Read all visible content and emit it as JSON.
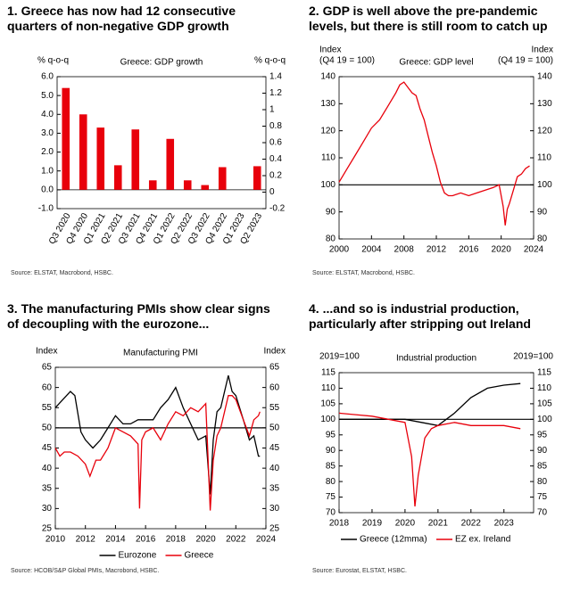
{
  "chart_data": [
    {
      "type": "bar",
      "title": "1. Greece has now had 12 consecutive quarters of non-negative GDP growth",
      "subtitle": "Greece: GDP growth",
      "ylabel": [
        "% q-o-q"
      ],
      "y2label": [
        "% q-o-q"
      ],
      "categories": [
        "Q3 2020",
        "Q4 2020",
        "Q1 2021",
        "Q2 2021",
        "Q3 2021",
        "Q4 2021",
        "Q1 2022",
        "Q2 2022",
        "Q3 2022",
        "Q4 2022",
        "Q1 2023",
        "Q2 2023"
      ],
      "values": [
        5.4,
        4.0,
        3.3,
        1.3,
        3.2,
        0.5,
        2.7,
        0.5,
        0.25,
        1.2,
        0,
        1.25
      ],
      "color": "#e8000b",
      "ylim": [
        -1,
        6
      ],
      "yticks": [
        {
          "value": -1,
          "label": "-1.0"
        },
        {
          "value": 0,
          "label": "0.0"
        },
        {
          "value": 1,
          "label": "1.0"
        },
        {
          "value": 2,
          "label": "2.0"
        },
        {
          "value": 3,
          "label": "3.0"
        },
        {
          "value": 4,
          "label": "4.0"
        },
        {
          "value": 5,
          "label": "5.0"
        },
        {
          "value": 6,
          "label": "6.0"
        }
      ],
      "y2lim": [
        -0.2,
        1.4
      ],
      "y2ticks": [
        -0.2,
        0,
        0.2,
        0.4,
        0.6,
        0.8,
        1,
        1.2,
        1.4
      ],
      "source": "Source: ELSTAT, Macrobond, HSBC."
    },
    {
      "type": "line",
      "title": "2. GDP is well above the pre-pandemic levels, but there is still room to catch up",
      "subtitle": "Greece: GDP level",
      "ylabel": [
        "Index",
        "(Q4 19 = 100)"
      ],
      "y2label": [
        "Index",
        "(Q4 19 = 100)"
      ],
      "x": [
        2000,
        2001,
        2002,
        2003,
        2004,
        2005,
        2006,
        2007,
        2007.5,
        2008,
        2008.5,
        2009,
        2009.5,
        2010,
        2010.5,
        2011,
        2011.5,
        2012,
        2012.5,
        2013,
        2013.5,
        2014,
        2015,
        2016,
        2017,
        2018,
        2019,
        2019.75,
        2020.25,
        2020.5,
        2020.75,
        2021,
        2021.5,
        2022,
        2022.5,
        2023,
        2023.5
      ],
      "values": [
        101,
        106,
        111,
        116,
        121,
        124,
        129,
        134,
        137,
        138,
        136,
        134,
        133,
        128,
        124,
        118,
        112,
        107,
        101,
        97,
        96,
        96,
        97,
        96,
        97,
        98,
        99,
        100,
        92,
        85,
        91,
        93,
        98,
        103,
        104,
        106,
        107
      ],
      "color": "#e8000b",
      "hline": 100,
      "xlim": [
        2000,
        2024
      ],
      "xticks": [
        2000,
        2004,
        2008,
        2012,
        2016,
        2020,
        2024
      ],
      "ylim": [
        80,
        140
      ],
      "yticks": [
        80,
        90,
        100,
        110,
        120,
        130,
        140
      ],
      "y2lim": [
        80,
        140
      ],
      "y2ticks": [
        80,
        90,
        100,
        110,
        120,
        130,
        140
      ],
      "source": "Source: ELSTAT, Macrobond, HSBC."
    },
    {
      "type": "line",
      "title": "3. The manufacturing PMIs show clear signs of decoupling with the eurozone...",
      "subtitle": "Manufacturing PMI",
      "ylabel": [
        "Index"
      ],
      "y2label": [
        "Index"
      ],
      "hline": 50,
      "series": [
        {
          "name": "Eurozone",
          "color": "#000000",
          "x": [
            2010,
            2010.5,
            2011,
            2011.3,
            2011.7,
            2012,
            2012.5,
            2013,
            2013.5,
            2014,
            2014.5,
            2015,
            2015.5,
            2016,
            2016.5,
            2017,
            2017.5,
            2018,
            2018.5,
            2019,
            2019.5,
            2020,
            2020.3,
            2020.5,
            2020.75,
            2021,
            2021.5,
            2021.75,
            2022,
            2022.5,
            2022.9,
            2023.2,
            2023.5,
            2023.6
          ],
          "values": [
            55,
            57,
            59,
            58,
            49,
            47,
            45,
            47,
            50,
            53,
            51,
            51,
            52,
            52,
            52,
            55,
            57,
            60,
            55,
            51,
            47,
            48,
            33.5,
            47,
            54,
            55,
            63,
            59,
            58,
            52,
            47,
            48,
            43,
            43
          ]
        },
        {
          "name": "Greece",
          "color": "#e8000b",
          "x": [
            2010,
            2010.3,
            2010.6,
            2011,
            2011.5,
            2012,
            2012.3,
            2012.7,
            2013,
            2013.5,
            2014,
            2014.5,
            2015,
            2015.5,
            2015.6,
            2015.75,
            2016,
            2016.5,
            2017,
            2017.5,
            2018,
            2018.5,
            2019,
            2019.5,
            2020,
            2020.3,
            2020.5,
            2020.75,
            2021,
            2021.5,
            2021.75,
            2022,
            2022.5,
            2022.9,
            2023.2,
            2023.5,
            2023.6
          ],
          "values": [
            45,
            43,
            44,
            44,
            43,
            41,
            38,
            42,
            42,
            45,
            50,
            49,
            48,
            46,
            30,
            47,
            49,
            50,
            47,
            51,
            54,
            53,
            55,
            54,
            56,
            29.5,
            42,
            48,
            50,
            58,
            58,
            57,
            52,
            48,
            52,
            53,
            54
          ]
        }
      ],
      "xlim": [
        2010,
        2024
      ],
      "xticks": [
        2010,
        2012,
        2014,
        2016,
        2018,
        2020,
        2022,
        2024
      ],
      "ylim": [
        25,
        65
      ],
      "yticks": [
        25,
        30,
        35,
        40,
        45,
        50,
        55,
        60,
        65
      ],
      "y2lim": [
        25,
        65
      ],
      "y2ticks": [
        25,
        30,
        35,
        40,
        45,
        50,
        55,
        60,
        65
      ],
      "source": "Source: HCOB/S&P Global PMIs, Macrobond, HSBC."
    },
    {
      "type": "line",
      "title": "4. ...and so is industrial production, particularly after stripping out Ireland",
      "subtitle": "Industrial production",
      "ylabel": [
        "2019=100"
      ],
      "y2label": [
        "2019=100"
      ],
      "hline": 100,
      "series": [
        {
          "name": "Greece (12mma)",
          "color": "#000000",
          "x": [
            2018,
            2018.5,
            2019,
            2019.5,
            2020,
            2020.5,
            2021,
            2021.5,
            2022,
            2022.5,
            2023,
            2023.5
          ],
          "values": [
            100,
            100,
            100,
            100,
            100,
            99,
            98,
            102,
            107,
            110,
            111,
            111.5
          ]
        },
        {
          "name": "EZ ex. Ireland",
          "color": "#e8000b",
          "x": [
            2018,
            2018.5,
            2019,
            2019.5,
            2020,
            2020.2,
            2020.3,
            2020.4,
            2020.6,
            2020.8,
            2021,
            2021.5,
            2022,
            2022.5,
            2023,
            2023.5
          ],
          "values": [
            102,
            101.5,
            101,
            100,
            99,
            88,
            72,
            82,
            94,
            97,
            98,
            99,
            98,
            98,
            98,
            97
          ]
        }
      ],
      "xlim": [
        2018,
        2023.9
      ],
      "xticks": [
        2018,
        2019,
        2020,
        2021,
        2022,
        2023
      ],
      "ylim": [
        70,
        115
      ],
      "yticks": [
        70,
        75,
        80,
        85,
        90,
        95,
        100,
        105,
        110,
        115
      ],
      "y2lim": [
        70,
        115
      ],
      "y2ticks": [
        70,
        75,
        80,
        85,
        90,
        95,
        100,
        105,
        110,
        115
      ],
      "source": "Source: Eurostat, ELSTAT, HSBC."
    }
  ]
}
